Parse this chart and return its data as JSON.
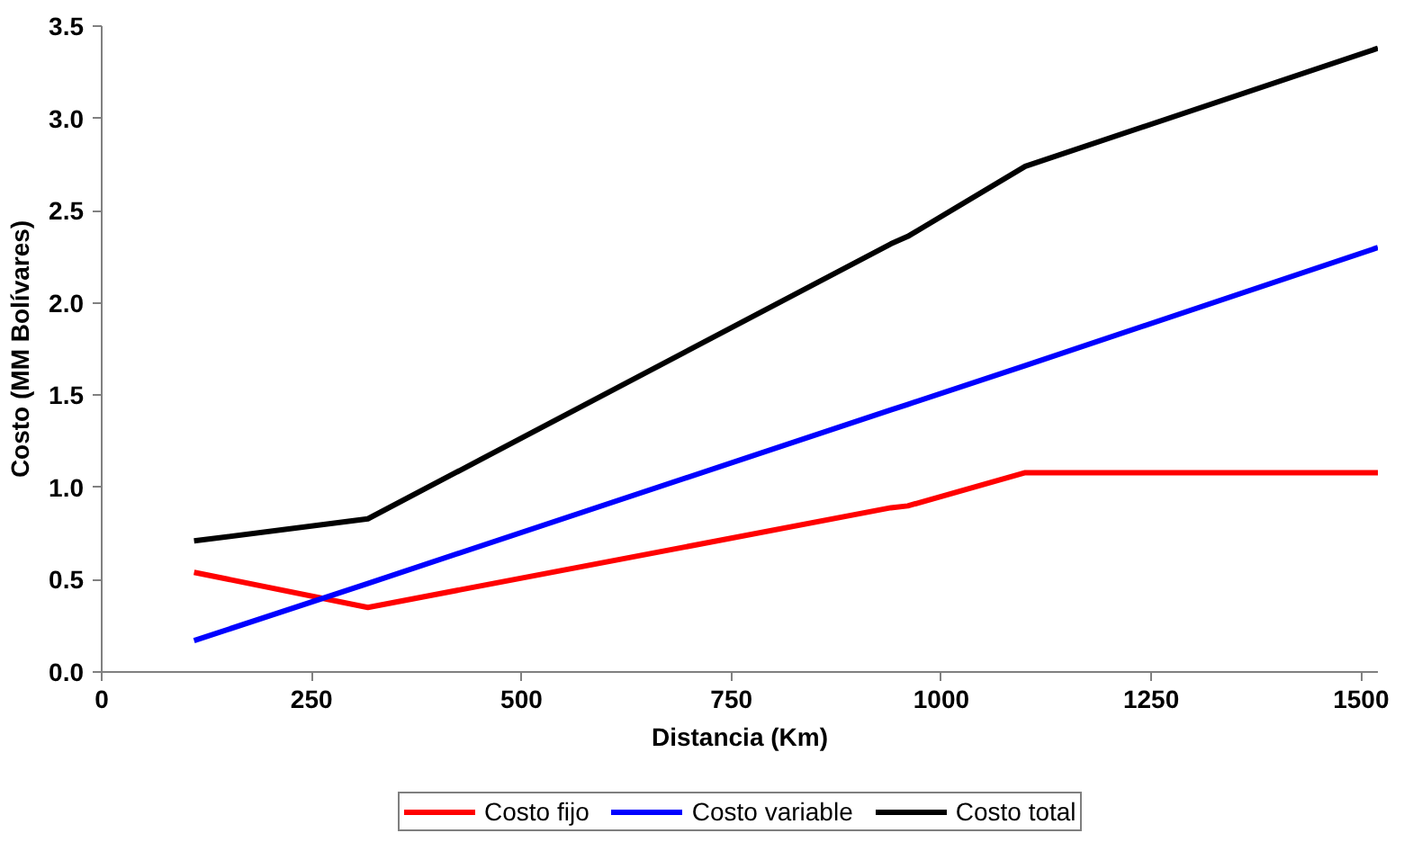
{
  "chart_data": {
    "type": "line",
    "xlabel": "Distancia (Km)",
    "ylabel": "Costo (MM Bolívares)",
    "xlim": [
      0,
      1520
    ],
    "xticks": [
      0,
      250,
      500,
      750,
      1000,
      1250,
      1500
    ],
    "ylim": [
      0,
      3.5
    ],
    "yticks": [
      {
        "value": 0,
        "label": "0.0"
      },
      {
        "value": 0.5,
        "label": "0.5"
      },
      {
        "value": 1,
        "label": "1.0"
      },
      {
        "value": 1.5,
        "label": "1.5"
      },
      {
        "value": 2,
        "label": "2.0"
      },
      {
        "value": 2.5,
        "label": "2.5"
      },
      {
        "value": 3,
        "label": "3.0"
      },
      {
        "value": 3.5,
        "label": "3.5"
      }
    ],
    "grid": false,
    "legend": "bottom",
    "marker": "none",
    "line_style": "solid",
    "series": [
      {
        "name": "Costo fijo",
        "color": "#ff0000",
        "x": [
          110,
          317,
          940,
          960,
          1100,
          1520
        ],
        "values": [
          0.54,
          0.35,
          0.89,
          0.9,
          1.08,
          1.08
        ]
      },
      {
        "name": "Costo variable",
        "color": "#0000ff",
        "x": [
          110,
          317,
          940,
          960,
          1100,
          1520
        ],
        "values": [
          0.17,
          0.48,
          1.42,
          1.45,
          1.66,
          2.3
        ]
      },
      {
        "name": "Costo total",
        "color": "#000000",
        "x": [
          110,
          317,
          940,
          960,
          1100,
          1520
        ],
        "values": [
          0.71,
          0.83,
          2.32,
          2.36,
          2.74,
          3.38
        ]
      }
    ]
  }
}
